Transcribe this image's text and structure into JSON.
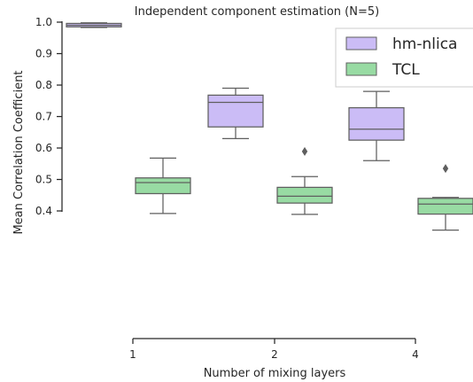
{
  "chart_data": {
    "type": "box",
    "title": "Independent component estimation (N=5)",
    "xlabel": "Number of mixing layers",
    "ylabel": "Mean Correlation Coefficient",
    "categories": [
      "1",
      "2",
      "4"
    ],
    "yticks": [
      "0.4",
      "0.5",
      "0.6",
      "0.7",
      "0.8",
      "0.9",
      "1.0"
    ],
    "ylim": [
      0.38,
      1.0
    ],
    "legend_position": "top-right",
    "grid": false,
    "series": [
      {
        "name": "hm-nlica",
        "color": "#cbbcf6",
        "boxes": [
          {
            "whislo": 0.983,
            "q1": 0.985,
            "med": 0.99,
            "q3": 0.996,
            "whishi": 0.998,
            "fliers": []
          },
          {
            "whislo": 0.63,
            "q1": 0.667,
            "med": 0.745,
            "q3": 0.768,
            "whishi": 0.79,
            "fliers": []
          },
          {
            "whislo": 0.56,
            "q1": 0.625,
            "med": 0.66,
            "q3": 0.728,
            "whishi": 0.78,
            "fliers": []
          }
        ]
      },
      {
        "name": "TCL",
        "color": "#98dba3",
        "boxes": [
          {
            "whislo": 0.392,
            "q1": 0.455,
            "med": 0.49,
            "q3": 0.505,
            "whishi": 0.568,
            "fliers": []
          },
          {
            "whislo": 0.389,
            "q1": 0.425,
            "med": 0.447,
            "q3": 0.475,
            "whishi": 0.509,
            "fliers": [
              0.589
            ]
          },
          {
            "whislo": 0.339,
            "q1": 0.39,
            "med": 0.422,
            "q3": 0.44,
            "whishi": 0.443,
            "fliers": [
              0.535
            ]
          }
        ]
      }
    ]
  }
}
